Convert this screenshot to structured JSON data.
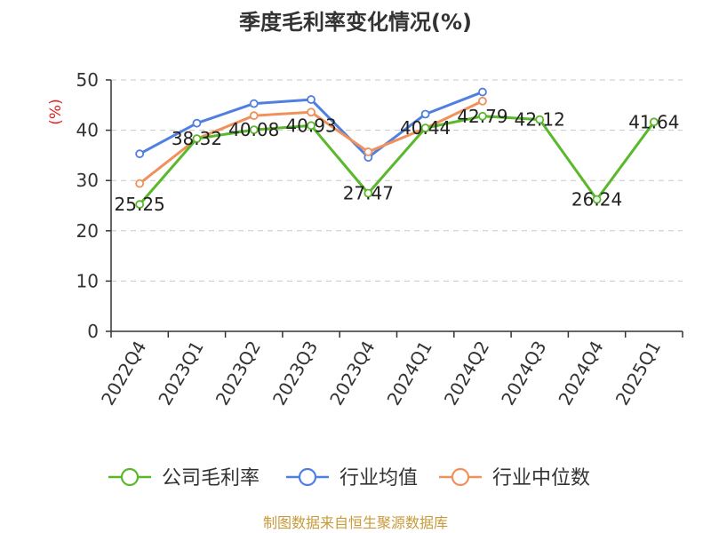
{
  "chart_data": {
    "type": "line",
    "title": "季度毛利率变化情况(%)",
    "ylabel": "(%)",
    "xlabel": "",
    "categories": [
      "2022Q4",
      "2023Q1",
      "2023Q2",
      "2023Q3",
      "2023Q4",
      "2024Q1",
      "2024Q2",
      "2024Q3",
      "2024Q4",
      "2025Q1"
    ],
    "ylim": [
      0,
      50
    ],
    "yticks": [
      0,
      10,
      20,
      30,
      40,
      50
    ],
    "grid": true,
    "legend_position": "bottom",
    "series": [
      {
        "name": "公司毛利率",
        "color": "#5ab82b",
        "values": [
          25.25,
          38.32,
          40.08,
          40.93,
          27.47,
          40.44,
          42.79,
          42.12,
          26.24,
          41.64
        ],
        "labels": [
          "25.25",
          "38.32",
          "40.08",
          "40.93",
          "27.47",
          "40.44",
          "42.79",
          "42.12",
          "26.24",
          "41.64"
        ]
      },
      {
        "name": "行业均值",
        "color": "#4f7fe0",
        "values": [
          35.3,
          41.4,
          45.3,
          46.1,
          34.6,
          43.2,
          47.6,
          null,
          null,
          null
        ]
      },
      {
        "name": "行业中位数",
        "color": "#f0905a",
        "values": [
          29.4,
          38.3,
          42.9,
          43.6,
          35.7,
          40.4,
          45.8,
          null,
          null,
          null
        ]
      }
    ]
  },
  "source": "制图数据来自恒生聚源数据库"
}
